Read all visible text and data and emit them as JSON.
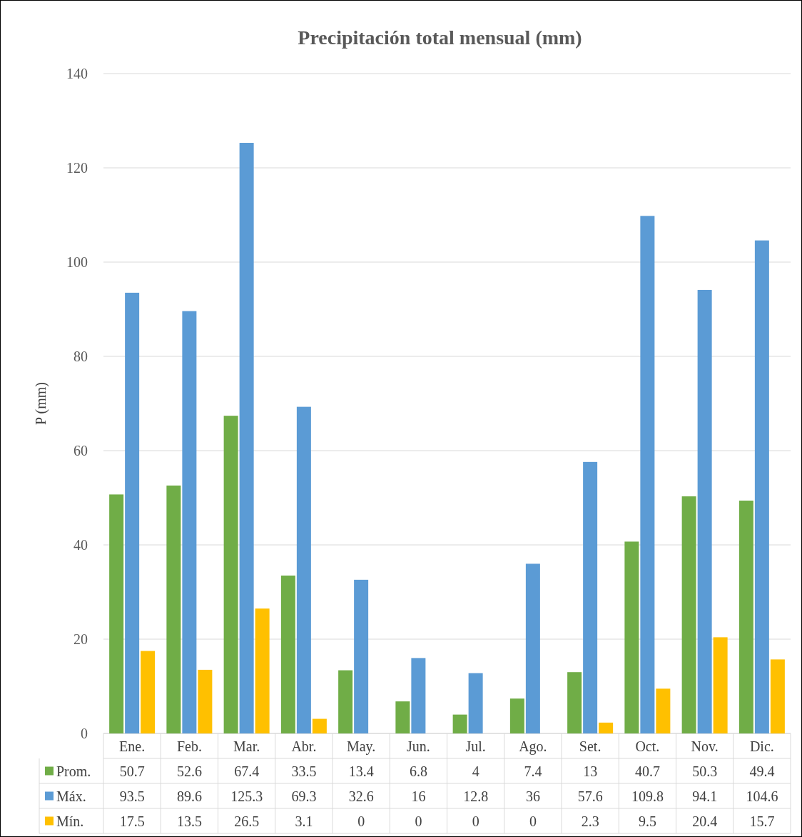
{
  "chart_data": {
    "type": "bar",
    "title": "Precipitación total mensual (mm)",
    "ylabel": "P (mm)",
    "categories": [
      "Ene.",
      "Feb.",
      "Mar.",
      "Abr.",
      "May.",
      "Jun.",
      "Jul.",
      "Ago.",
      "Set.",
      "Oct.",
      "Nov.",
      "Dic."
    ],
    "series": [
      {
        "name": "Prom.",
        "color": "#70ad47",
        "values": [
          50.7,
          52.6,
          67.4,
          33.5,
          13.4,
          6.8,
          4,
          7.4,
          13,
          40.7,
          50.3,
          49.4
        ]
      },
      {
        "name": "Máx.",
        "color": "#5b9bd5",
        "values": [
          93.5,
          89.6,
          125.3,
          69.3,
          32.6,
          16,
          12.8,
          36,
          57.6,
          109.8,
          94.1,
          104.6
        ]
      },
      {
        "name": "Mín.",
        "color": "#ffc000",
        "values": [
          17.5,
          13.5,
          26.5,
          3.1,
          0,
          0,
          0,
          0,
          2.3,
          9.5,
          20.4,
          15.7
        ]
      }
    ],
    "ylim": [
      0,
      140
    ],
    "yticks": [
      0,
      20,
      40,
      60,
      80,
      100,
      120,
      140
    ],
    "grid": "y",
    "legend": "bottom",
    "data_labels": true
  }
}
